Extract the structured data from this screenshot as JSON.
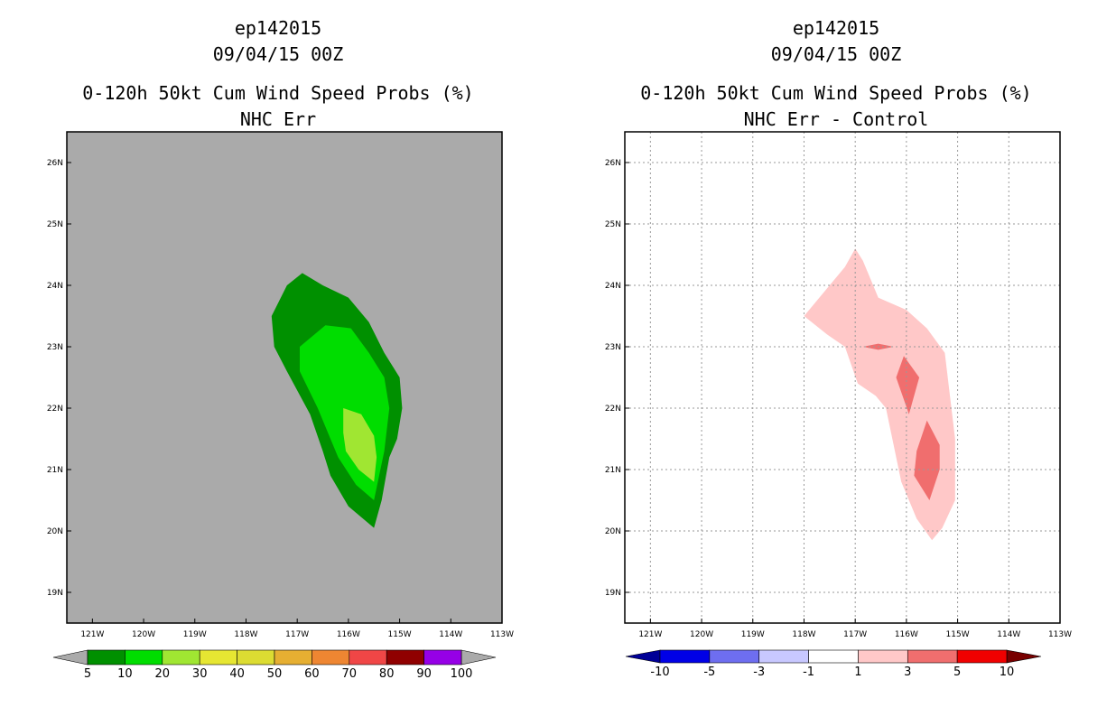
{
  "chart_data": [
    {
      "type": "filled-contour",
      "title_lines": [
        "ep142015",
        "09/04/15 00Z",
        "0-120h 50kt Cum Wind Speed Probs (%)",
        "NHC Err"
      ],
      "background_color": "#aaaaaa",
      "grid": false,
      "xlim": [
        -121.5,
        -113
      ],
      "ylim": [
        18.5,
        26.5
      ],
      "x_ticks": [
        {
          "value": -121,
          "label": "121W"
        },
        {
          "value": -120,
          "label": "120W"
        },
        {
          "value": -119,
          "label": "119W"
        },
        {
          "value": -118,
          "label": "118W"
        },
        {
          "value": -117,
          "label": "117W"
        },
        {
          "value": -116,
          "label": "116W"
        },
        {
          "value": -115,
          "label": "115W"
        },
        {
          "value": -114,
          "label": "114W"
        },
        {
          "value": -113,
          "label": "113W"
        }
      ],
      "y_ticks": [
        {
          "value": 19,
          "label": "19N"
        },
        {
          "value": 20,
          "label": "20N"
        },
        {
          "value": 21,
          "label": "21N"
        },
        {
          "value": 22,
          "label": "22N"
        },
        {
          "value": 23,
          "label": "23N"
        },
        {
          "value": 24,
          "label": "24N"
        },
        {
          "value": 25,
          "label": "25N"
        },
        {
          "value": 26,
          "label": "26N"
        }
      ],
      "contours": [
        {
          "level": "5-10",
          "color": "#009000",
          "points": [
            [
              -117.5,
              23.5
            ],
            [
              -117.2,
              24
            ],
            [
              -116.9,
              24.2
            ],
            [
              -116.5,
              24
            ],
            [
              -116,
              23.8
            ],
            [
              -115.6,
              23.4
            ],
            [
              -115.3,
              22.9
            ],
            [
              -115,
              22.5
            ],
            [
              -114.95,
              22
            ],
            [
              -115.05,
              21.5
            ],
            [
              -115.2,
              21.2
            ],
            [
              -115.35,
              20.5
            ],
            [
              -115.5,
              20.05
            ],
            [
              -116,
              20.4
            ],
            [
              -116.35,
              20.9
            ],
            [
              -116.5,
              21.3
            ],
            [
              -116.75,
              21.9
            ],
            [
              -117.2,
              22.6
            ],
            [
              -117.45,
              23
            ]
          ]
        },
        {
          "level": "10-20",
          "color": "#00dd00",
          "points": [
            [
              -116.95,
              23
            ],
            [
              -116.45,
              23.35
            ],
            [
              -115.95,
              23.3
            ],
            [
              -115.6,
              22.9
            ],
            [
              -115.3,
              22.5
            ],
            [
              -115.2,
              22
            ],
            [
              -115.3,
              21.3
            ],
            [
              -115.5,
              20.5
            ],
            [
              -115.85,
              20.75
            ],
            [
              -116.2,
              21.2
            ],
            [
              -116.35,
              21.5
            ],
            [
              -116.6,
              22
            ],
            [
              -116.95,
              22.6
            ]
          ]
        },
        {
          "level": "20-30",
          "color": "#a0e632",
          "points": [
            [
              -116.1,
              22
            ],
            [
              -115.75,
              21.9
            ],
            [
              -115.5,
              21.55
            ],
            [
              -115.45,
              21.2
            ],
            [
              -115.5,
              20.8
            ],
            [
              -115.8,
              21
            ],
            [
              -116.05,
              21.3
            ],
            [
              -116.1,
              21.6
            ]
          ]
        }
      ],
      "colorbar": {
        "colors": [
          "#009000",
          "#00dd00",
          "#a0e632",
          "#e6e632",
          "#dcdc32",
          "#e6af32",
          "#ee8632",
          "#f04646",
          "#900000",
          "#9600e6"
        ],
        "extend_colors": [
          "#aaaaaa",
          "#aaaaaa"
        ],
        "labels": [
          "5",
          "10",
          "20",
          "30",
          "40",
          "50",
          "60",
          "70",
          "80",
          "90",
          "100"
        ]
      }
    },
    {
      "type": "filled-contour",
      "title_lines": [
        "ep142015",
        "09/04/15 00Z",
        "0-120h 50kt Cum Wind Speed Probs (%)",
        "NHC Err - Control"
      ],
      "background_color": "#ffffff",
      "grid": true,
      "xlim": [
        -121.5,
        -113
      ],
      "ylim": [
        18.5,
        26.5
      ],
      "x_ticks": [
        {
          "value": -121,
          "label": "121W"
        },
        {
          "value": -120,
          "label": "120W"
        },
        {
          "value": -119,
          "label": "119W"
        },
        {
          "value": -118,
          "label": "118W"
        },
        {
          "value": -117,
          "label": "117W"
        },
        {
          "value": -116,
          "label": "116W"
        },
        {
          "value": -115,
          "label": "115W"
        },
        {
          "value": -114,
          "label": "114W"
        },
        {
          "value": -113,
          "label": "113W"
        }
      ],
      "y_ticks": [
        {
          "value": 19,
          "label": "19N"
        },
        {
          "value": 20,
          "label": "20N"
        },
        {
          "value": 21,
          "label": "21N"
        },
        {
          "value": 22,
          "label": "22N"
        },
        {
          "value": 23,
          "label": "23N"
        },
        {
          "value": 24,
          "label": "24N"
        },
        {
          "value": 25,
          "label": "25N"
        },
        {
          "value": 26,
          "label": "26N"
        }
      ],
      "contours": [
        {
          "level": "1-3",
          "color": "#ffc8c8",
          "points": [
            [
              -118,
              23.5
            ],
            [
              -117.55,
              23.95
            ],
            [
              -117.2,
              24.3
            ],
            [
              -117,
              24.6
            ],
            [
              -116.85,
              24.4
            ],
            [
              -116.55,
              23.8
            ],
            [
              -116,
              23.6
            ],
            [
              -115.6,
              23.3
            ],
            [
              -115.25,
              22.9
            ],
            [
              -115.15,
              22.2
            ],
            [
              -115.05,
              21.5
            ],
            [
              -115.05,
              20.5
            ],
            [
              -115.3,
              20.05
            ],
            [
              -115.5,
              19.85
            ],
            [
              -115.8,
              20.2
            ],
            [
              -116.1,
              20.8
            ],
            [
              -116.25,
              21.4
            ],
            [
              -116.4,
              22
            ],
            [
              -116.6,
              22.2
            ],
            [
              -116.95,
              22.4
            ],
            [
              -117.2,
              23
            ],
            [
              -117.55,
              23.2
            ]
          ]
        },
        {
          "level": "3-5",
          "color": "#f06e6e",
          "points": [
            [
              -116.85,
              23
            ],
            [
              -116.55,
              23.05
            ],
            [
              -116.25,
              23
            ],
            [
              -116.55,
              22.95
            ]
          ]
        },
        {
          "level": "3-5",
          "color": "#f06e6e",
          "points": [
            [
              -116.2,
              22.5
            ],
            [
              -116.05,
              22.85
            ],
            [
              -115.75,
              22.5
            ],
            [
              -115.95,
              21.9
            ]
          ]
        },
        {
          "level": "3-5",
          "color": "#f06e6e",
          "points": [
            [
              -115.8,
              21.3
            ],
            [
              -115.6,
              21.8
            ],
            [
              -115.35,
              21.4
            ],
            [
              -115.35,
              21
            ],
            [
              -115.55,
              20.5
            ],
            [
              -115.85,
              20.9
            ]
          ]
        }
      ],
      "colorbar": {
        "colors": [
          "#0000e6",
          "#6e6ef0",
          "#c8c8ff",
          "#ffffff",
          "#ffc8c8",
          "#f06e6e",
          "#f00000"
        ],
        "extend_colors": [
          "#000096",
          "#780000"
        ],
        "labels": [
          "-10",
          "-5",
          "-3",
          "-1",
          "1",
          "3",
          "5",
          "10"
        ]
      }
    }
  ]
}
